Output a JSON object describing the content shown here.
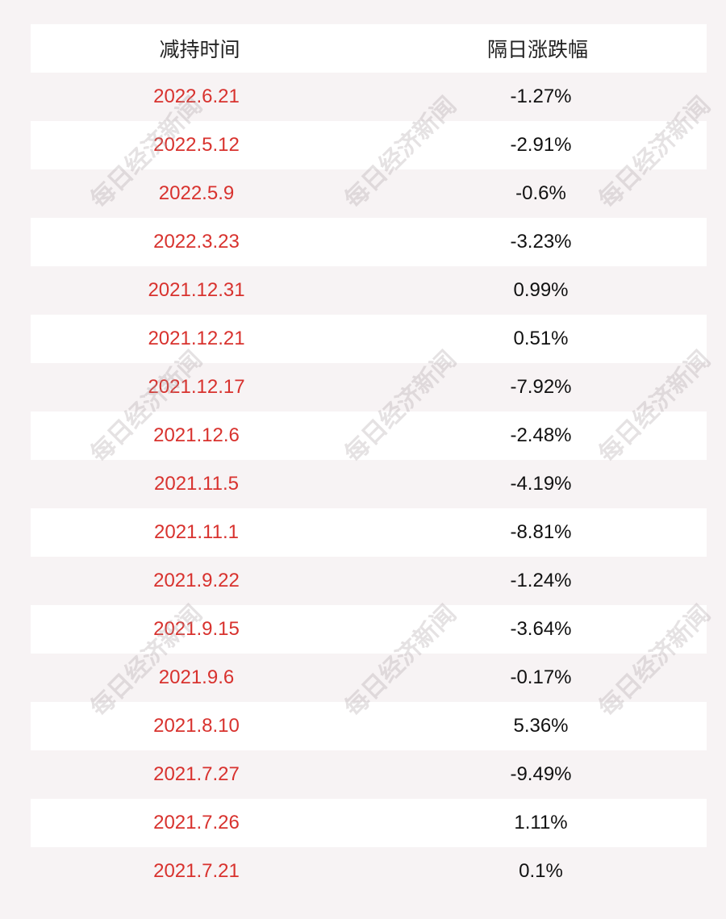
{
  "table": {
    "headers": {
      "date": "减持时间",
      "change": "隔日涨跌幅"
    },
    "rows": [
      {
        "date": "2022.6.21",
        "change": "-1.27%"
      },
      {
        "date": "2022.5.12",
        "change": "-2.91%"
      },
      {
        "date": "2022.5.9",
        "change": "-0.6%"
      },
      {
        "date": "2022.3.23",
        "change": "-3.23%"
      },
      {
        "date": "2021.12.31",
        "change": "0.99%"
      },
      {
        "date": "2021.12.21",
        "change": "0.51%"
      },
      {
        "date": "2021.12.17",
        "change": "-7.92%"
      },
      {
        "date": "2021.12.6",
        "change": "-2.48%"
      },
      {
        "date": "2021.11.5",
        "change": "-4.19%"
      },
      {
        "date": "2021.11.1",
        "change": "-8.81%"
      },
      {
        "date": "2021.9.22",
        "change": "-1.24%"
      },
      {
        "date": "2021.9.15",
        "change": "-3.64%"
      },
      {
        "date": "2021.9.6",
        "change": "-0.17%"
      },
      {
        "date": "2021.8.10",
        "change": "5.36%"
      },
      {
        "date": "2021.7.27",
        "change": "-9.49%"
      },
      {
        "date": "2021.7.26",
        "change": "1.11%"
      },
      {
        "date": "2021.7.21",
        "change": "0.1%"
      }
    ]
  },
  "watermark": {
    "text": "每日经济新闻"
  },
  "colors": {
    "date_text": "#d8322e",
    "background": "#f7f3f4",
    "row_alt": "#ffffff"
  }
}
